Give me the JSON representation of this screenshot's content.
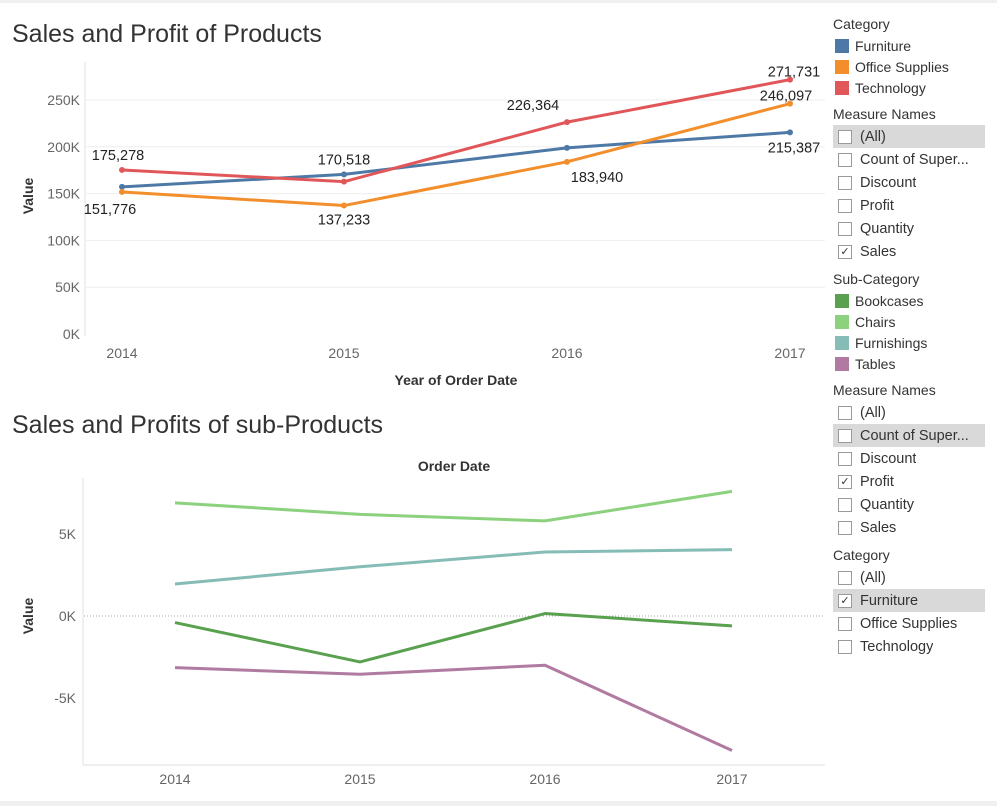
{
  "chart_data": [
    {
      "type": "line",
      "title": "Sales and Profit of Products",
      "xlabel": "Year of Order Date",
      "ylabel": "Value",
      "x": [
        "2014",
        "2015",
        "2016",
        "2017"
      ],
      "ylim": [
        0,
        280000
      ],
      "yticks": [
        0,
        50000,
        100000,
        150000,
        200000,
        250000
      ],
      "ytick_labels": [
        "0K",
        "50K",
        "100K",
        "150K",
        "200K",
        "250K"
      ],
      "grid": "horizontal",
      "series": [
        {
          "name": "Furniture",
          "color": "#4e79a7",
          "values": [
            157193,
            170518,
            198901,
            215387
          ],
          "labels": [
            "",
            "170,518",
            "",
            "215,387"
          ]
        },
        {
          "name": "Office Supplies",
          "color": "#f28e2b",
          "values": [
            151776,
            137233,
            183940,
            246097
          ],
          "labels": [
            "151,776",
            "137,233",
            "183,940",
            "246,097"
          ]
        },
        {
          "name": "Technology",
          "color": "#e15759",
          "values": [
            175278,
            162781,
            226364,
            271731
          ],
          "labels": [
            "175,278",
            "",
            "226,364",
            "271,731"
          ]
        }
      ]
    },
    {
      "type": "line",
      "title": "Sales and Profits of sub-Products",
      "column_header": "Order Date",
      "ylabel": "Value",
      "x": [
        "2014",
        "2015",
        "2016",
        "2017"
      ],
      "ylim": [
        -9000,
        9000
      ],
      "yticks": [
        -5000,
        0,
        5000
      ],
      "ytick_labels": [
        "-5K",
        "0K",
        "5K"
      ],
      "series": [
        {
          "name": "Bookcases",
          "color": "#59a14f",
          "values": [
            -400,
            -2800,
            150,
            -600
          ]
        },
        {
          "name": "Chairs",
          "color": "#8cd17d",
          "values": [
            6900,
            6200,
            5800,
            7600
          ]
        },
        {
          "name": "Furnishings",
          "color": "#86bcb6",
          "values": [
            1950,
            3000,
            3900,
            4050
          ]
        },
        {
          "name": "Tables",
          "color": "#b07aa1",
          "values": [
            -3150,
            -3550,
            -3000,
            -8200
          ]
        }
      ]
    }
  ],
  "legend_panel": {
    "category_legend": {
      "title": "Category",
      "items": [
        {
          "label": "Furniture",
          "color": "#4e79a7"
        },
        {
          "label": "Office Supplies",
          "color": "#f28e2b"
        },
        {
          "label": "Technology",
          "color": "#e15759"
        }
      ]
    },
    "measure_filter_1": {
      "title": "Measure Names",
      "items": [
        {
          "label": "(All)",
          "checked": false,
          "highlight": true
        },
        {
          "label": "Count of Super...",
          "checked": false
        },
        {
          "label": "Discount",
          "checked": false
        },
        {
          "label": "Profit",
          "checked": false
        },
        {
          "label": "Quantity",
          "checked": false
        },
        {
          "label": "Sales",
          "checked": true
        }
      ]
    },
    "subcategory_legend": {
      "title": "Sub-Category",
      "items": [
        {
          "label": "Bookcases",
          "color": "#59a14f"
        },
        {
          "label": "Chairs",
          "color": "#8cd17d"
        },
        {
          "label": "Furnishings",
          "color": "#86bcb6"
        },
        {
          "label": "Tables",
          "color": "#b07aa1"
        }
      ]
    },
    "measure_filter_2": {
      "title": "Measure Names",
      "items": [
        {
          "label": "(All)",
          "checked": false
        },
        {
          "label": "Count of Super...",
          "checked": false,
          "highlight": true
        },
        {
          "label": "Discount",
          "checked": false
        },
        {
          "label": "Profit",
          "checked": true
        },
        {
          "label": "Quantity",
          "checked": false
        },
        {
          "label": "Sales",
          "checked": false
        }
      ]
    },
    "category_filter": {
      "title": "Category",
      "items": [
        {
          "label": "(All)",
          "checked": false
        },
        {
          "label": "Furniture",
          "checked": true,
          "highlight": true
        },
        {
          "label": "Office Supplies",
          "checked": false
        },
        {
          "label": "Technology",
          "checked": false
        }
      ]
    }
  }
}
